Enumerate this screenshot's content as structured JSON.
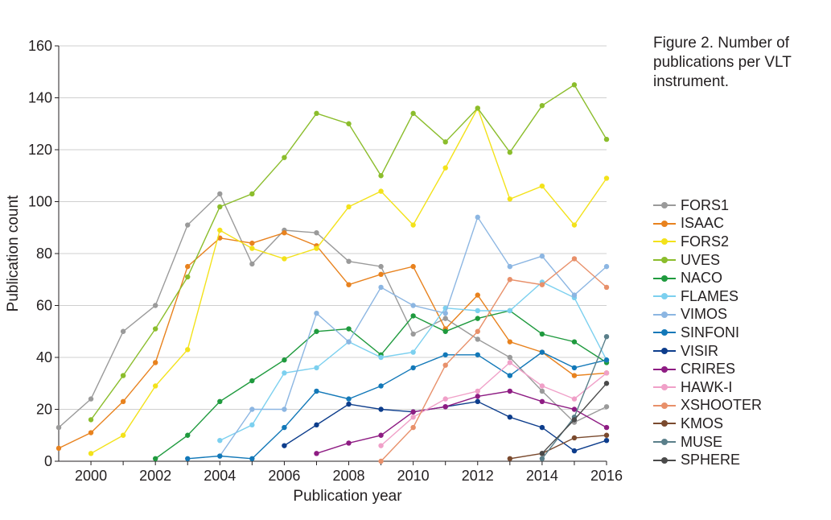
{
  "caption": {
    "label": "Figure 2.",
    "text": "Number of publications per VLT instrument."
  },
  "chart_data": {
    "type": "line",
    "xlabel": "Publication year",
    "ylabel": "Publication count",
    "xlim": [
      1999,
      2016
    ],
    "ylim": [
      0,
      160
    ],
    "xticks": [
      2000,
      2002,
      2004,
      2006,
      2008,
      2010,
      2012,
      2014,
      2016
    ],
    "yticks": [
      0,
      20,
      40,
      60,
      80,
      100,
      120,
      140,
      160
    ],
    "grid": "horizontal",
    "legend_position": "right",
    "series": [
      {
        "name": "FORS1",
        "color": "#9a9a9a",
        "x": [
          1999,
          2000,
          2001,
          2002,
          2003,
          2004,
          2005,
          2006,
          2007,
          2008,
          2009,
          2010,
          2011,
          2012,
          2013,
          2014,
          2015,
          2016
        ],
        "y": [
          13,
          24,
          50,
          60,
          91,
          103,
          76,
          89,
          88,
          77,
          75,
          49,
          55,
          47,
          40,
          27,
          15,
          21
        ]
      },
      {
        "name": "ISAAC",
        "color": "#e8821e",
        "x": [
          1999,
          2000,
          2001,
          2002,
          2003,
          2004,
          2005,
          2006,
          2007,
          2008,
          2009,
          2010,
          2011,
          2012,
          2013,
          2014,
          2015,
          2016
        ],
        "y": [
          5,
          11,
          23,
          38,
          75,
          86,
          84,
          88,
          83,
          68,
          72,
          75,
          51,
          64,
          46,
          42,
          33,
          34
        ]
      },
      {
        "name": "FORS2",
        "color": "#f3e21a",
        "x": [
          2000,
          2001,
          2002,
          2003,
          2004,
          2005,
          2006,
          2007,
          2008,
          2009,
          2010,
          2011,
          2012,
          2013,
          2014,
          2015,
          2016
        ],
        "y": [
          3,
          10,
          29,
          43,
          89,
          82,
          78,
          82,
          98,
          104,
          91,
          113,
          136,
          101,
          106,
          91,
          109
        ]
      },
      {
        "name": "UVES",
        "color": "#8bbd2c",
        "x": [
          2000,
          2001,
          2002,
          2003,
          2004,
          2005,
          2006,
          2007,
          2008,
          2009,
          2010,
          2011,
          2012,
          2013,
          2014,
          2015,
          2016
        ],
        "y": [
          16,
          33,
          51,
          71,
          98,
          103,
          117,
          134,
          130,
          110,
          134,
          123,
          136,
          119,
          137,
          145,
          124
        ]
      },
      {
        "name": "NACO",
        "color": "#1f9a3e",
        "x": [
          2002,
          2003,
          2004,
          2005,
          2006,
          2007,
          2008,
          2009,
          2010,
          2011,
          2012,
          2013,
          2014,
          2015,
          2016
        ],
        "y": [
          1,
          10,
          23,
          31,
          39,
          50,
          51,
          41,
          56,
          50,
          55,
          58,
          49,
          46,
          38
        ]
      },
      {
        "name": "FLAMES",
        "color": "#7cd0ef",
        "x": [
          2004,
          2005,
          2006,
          2007,
          2008,
          2009,
          2010,
          2011,
          2012,
          2013,
          2014,
          2015,
          2016
        ],
        "y": [
          8,
          14,
          34,
          36,
          46,
          40,
          42,
          59,
          58,
          58,
          69,
          63,
          39
        ]
      },
      {
        "name": "VIMOS",
        "color": "#8cb6e2",
        "x": [
          2004,
          2005,
          2006,
          2007,
          2008,
          2009,
          2010,
          2011,
          2012,
          2013,
          2014,
          2015,
          2016
        ],
        "y": [
          2,
          20,
          20,
          57,
          46,
          67,
          60,
          57,
          94,
          75,
          79,
          64,
          75
        ]
      },
      {
        "name": "SINFONI",
        "color": "#1278b8",
        "x": [
          2003,
          2004,
          2005,
          2006,
          2007,
          2008,
          2009,
          2010,
          2011,
          2012,
          2013,
          2014,
          2015,
          2016
        ],
        "y": [
          1,
          2,
          1,
          13,
          27,
          24,
          29,
          36,
          41,
          41,
          33,
          42,
          36,
          39
        ]
      },
      {
        "name": "VISIR",
        "color": "#0d3d8c",
        "x": [
          2006,
          2007,
          2008,
          2009,
          2010,
          2011,
          2012,
          2013,
          2014,
          2015,
          2016
        ],
        "y": [
          6,
          14,
          22,
          20,
          19,
          21,
          23,
          17,
          13,
          4,
          8
        ]
      },
      {
        "name": "CRIRES",
        "color": "#8e1c83",
        "x": [
          2007,
          2008,
          2009,
          2010,
          2011,
          2012,
          2013,
          2014,
          2015,
          2016
        ],
        "y": [
          3,
          7,
          10,
          19,
          21,
          25,
          27,
          23,
          20,
          13
        ]
      },
      {
        "name": "HAWK-I",
        "color": "#f0a0c8",
        "x": [
          2009,
          2010,
          2011,
          2012,
          2013,
          2014,
          2015,
          2016
        ],
        "y": [
          6,
          17,
          24,
          27,
          38,
          29,
          24,
          34
        ]
      },
      {
        "name": "XSHOOTER",
        "color": "#e8906a",
        "x": [
          2009,
          2010,
          2011,
          2012,
          2013,
          2014,
          2015,
          2016
        ],
        "y": [
          0,
          13,
          37,
          50,
          70,
          68,
          78,
          67
        ]
      },
      {
        "name": "KMOS",
        "color": "#7a4a2e",
        "x": [
          2013,
          2014,
          2015,
          2016
        ],
        "y": [
          1,
          3,
          9,
          10
        ]
      },
      {
        "name": "MUSE",
        "color": "#5a7f8a",
        "x": [
          2014,
          2015,
          2016
        ],
        "y": [
          1,
          17,
          48
        ]
      },
      {
        "name": "SPHERE",
        "color": "#4a4a4a",
        "x": [
          2014,
          2015,
          2016
        ],
        "y": [
          3,
          16,
          30
        ]
      }
    ]
  }
}
